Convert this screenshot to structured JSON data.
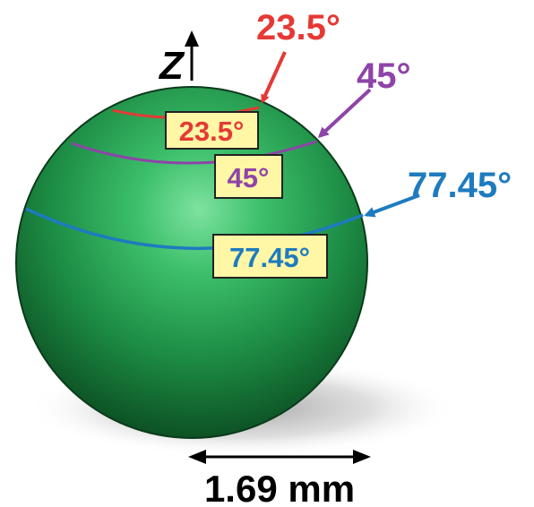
{
  "axis": {
    "label": "Z"
  },
  "annotations": [
    {
      "id": "lat-23",
      "text": "23.5°",
      "color": "#e53935"
    },
    {
      "id": "lat-45",
      "text": "45°",
      "color": "#8e44a8"
    },
    {
      "id": "lat-77",
      "text": "77.45°",
      "color": "#1e7bbf"
    }
  ],
  "dimension": {
    "text": "1.69 mm"
  },
  "colors": {
    "sphere": "#1e8f48",
    "label_box_fill": "#fff7a6",
    "label_box_stroke": "#222222"
  }
}
